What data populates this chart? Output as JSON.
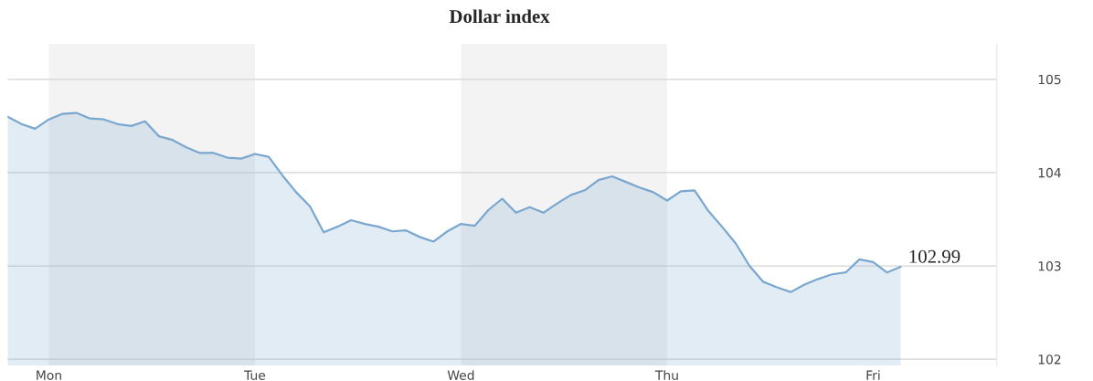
{
  "chart_data": {
    "type": "area",
    "title": "Dollar index",
    "categories": [
      null,
      null,
      null,
      "Mon",
      null,
      null,
      null,
      null,
      null,
      null,
      null,
      null,
      null,
      null,
      null,
      null,
      null,
      null,
      "Tue",
      null,
      null,
      null,
      null,
      null,
      null,
      null,
      null,
      null,
      null,
      null,
      null,
      null,
      null,
      "Wed",
      null,
      null,
      null,
      null,
      null,
      null,
      null,
      null,
      null,
      null,
      null,
      null,
      null,
      null,
      "Thu",
      null,
      null,
      null,
      null,
      null,
      null,
      null,
      null,
      null,
      null,
      null,
      null,
      null,
      null,
      "Fri",
      null,
      null,
      null,
      null,
      null,
      null,
      null,
      null,
      null
    ],
    "series": [
      {
        "color": "#7aa7d0",
        "values": [
          104.6,
          104.52,
          104.47,
          104.57,
          104.63,
          104.64,
          104.58,
          104.57,
          104.52,
          104.5,
          104.55,
          104.39,
          104.35,
          104.27,
          104.21,
          104.21,
          104.16,
          104.15,
          104.2,
          104.17,
          103.97,
          103.79,
          103.64,
          103.36,
          103.42,
          103.49,
          103.45,
          103.42,
          103.37,
          103.38,
          103.31,
          103.26,
          103.37,
          103.45,
          103.43,
          103.6,
          103.72,
          103.57,
          103.63,
          103.57,
          103.67,
          103.76,
          103.81,
          103.92,
          103.96,
          103.9,
          103.84,
          103.79,
          103.7,
          103.8,
          103.81,
          103.59,
          103.42,
          103.24,
          103.0,
          102.83,
          102.77,
          102.72,
          102.8,
          102.86,
          102.91,
          102.93,
          103.07,
          103.04,
          102.93,
          102.99,
          null,
          null,
          null,
          null,
          null,
          null,
          null
        ]
      }
    ],
    "ylim": [
      101.93,
      105.38
    ],
    "yticks": [
      102,
      103,
      104,
      105
    ],
    "grid": "y",
    "bands": [
      {
        "axis": "x",
        "from": "Mon",
        "to": "Tue",
        "color": "#f3f3f3"
      },
      {
        "axis": "x",
        "from": "Wed",
        "to": "Thu",
        "color": "#f3f3f3"
      }
    ],
    "annotations": [
      "102.99"
    ]
  }
}
